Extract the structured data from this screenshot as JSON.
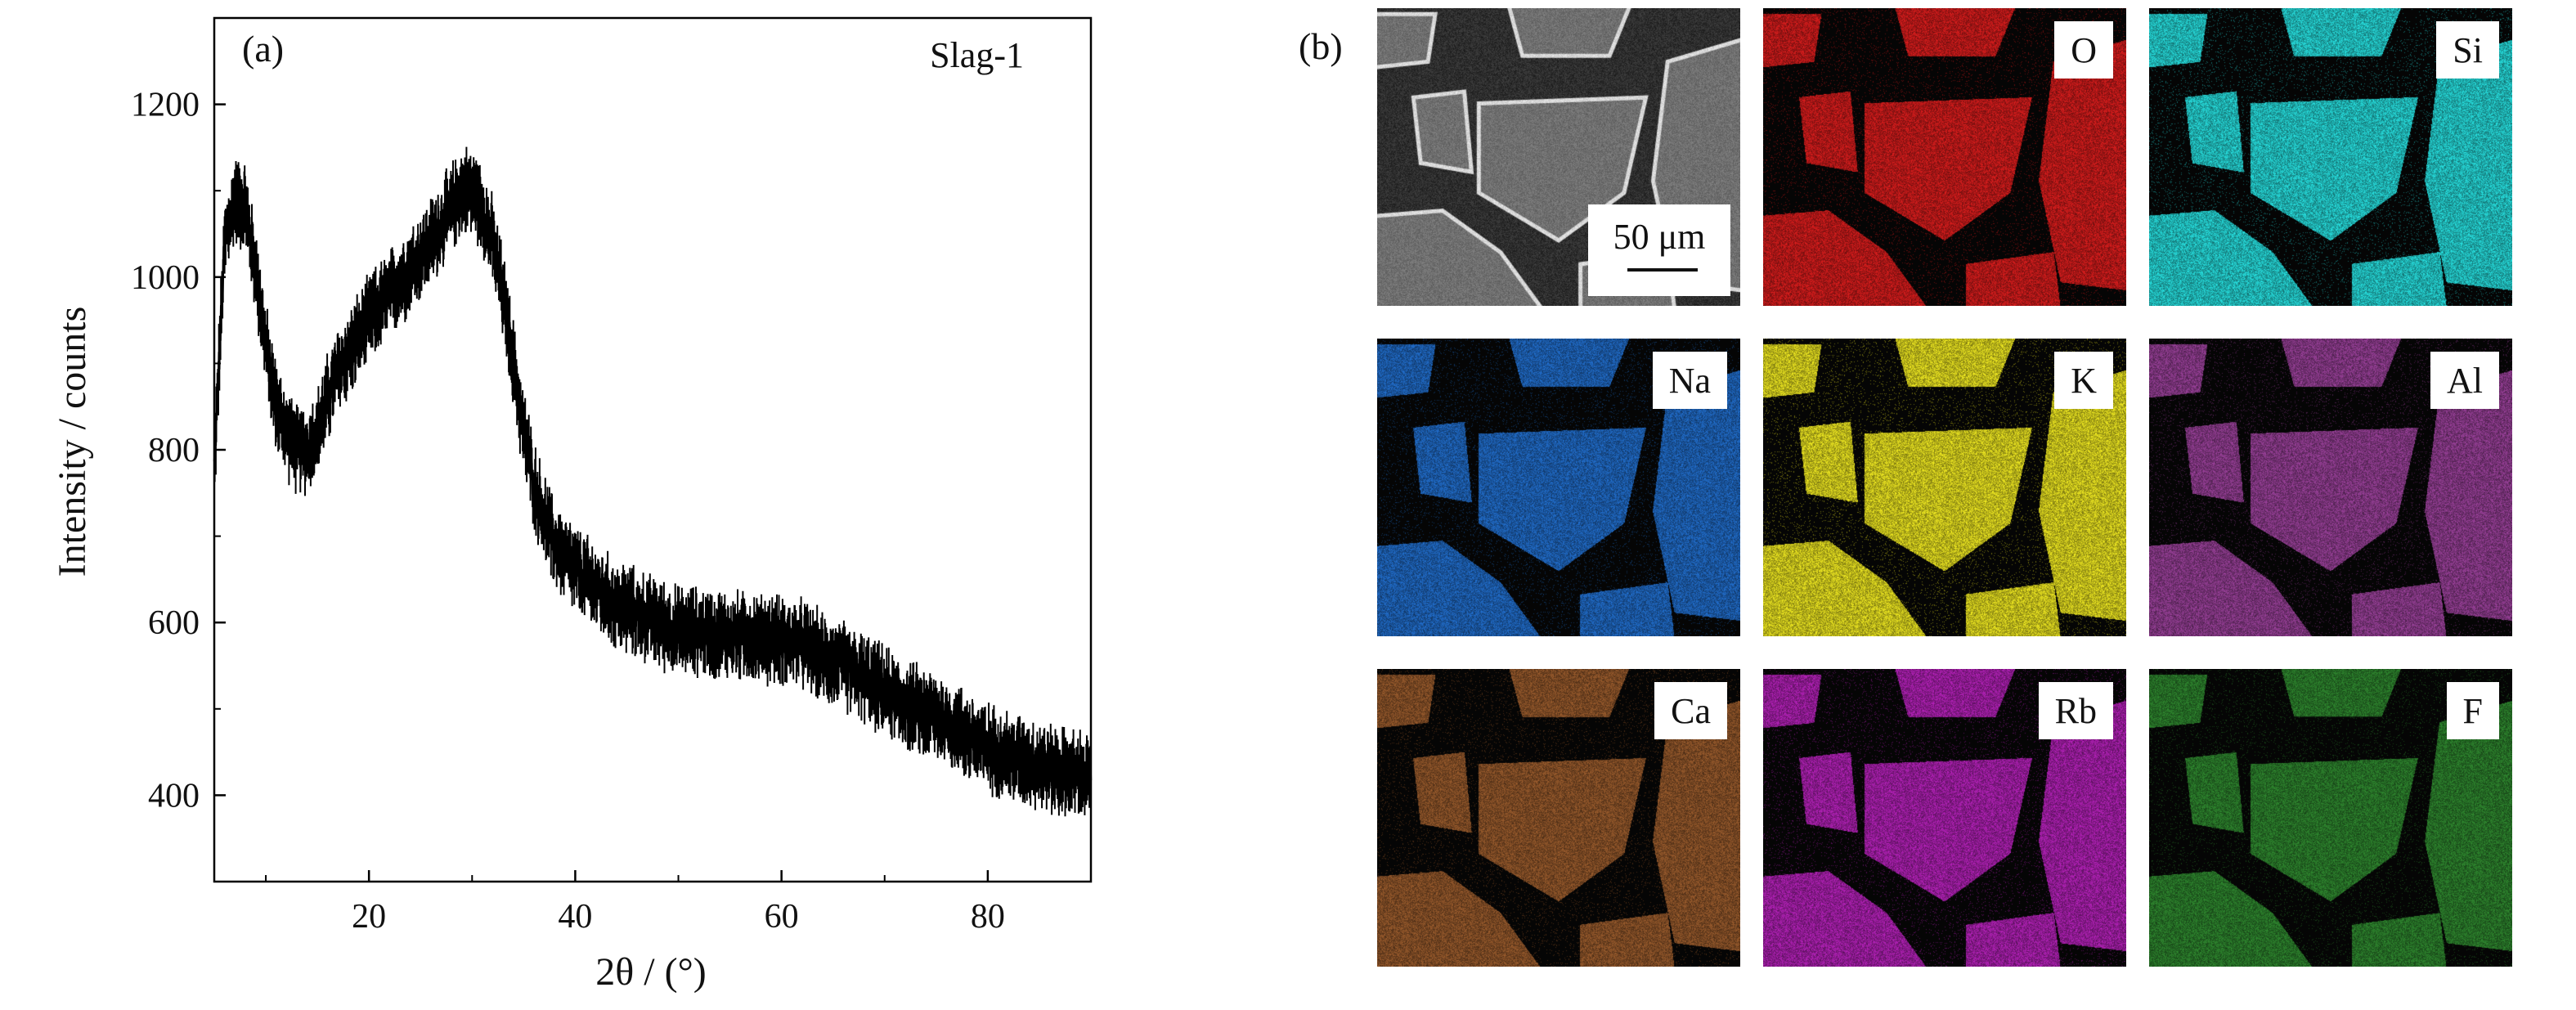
{
  "panel_a": {
    "letter": "(a)"
  },
  "panel_b": {
    "letter": "(b)",
    "scale_bar_label": "50 μm",
    "maps": [
      {
        "label": "",
        "kind": "sem",
        "color": "#8a8a8a"
      },
      {
        "label": "O",
        "kind": "eds",
        "color": "#c41a1a"
      },
      {
        "label": "Si",
        "kind": "eds",
        "color": "#23c9c9"
      },
      {
        "label": "Na",
        "kind": "eds",
        "color": "#1e63b8"
      },
      {
        "label": "K",
        "kind": "eds",
        "color": "#d8d21e"
      },
      {
        "label": "Al",
        "kind": "eds",
        "color": "#8a3a8a"
      },
      {
        "label": "Ca",
        "kind": "eds",
        "color": "#8a5228"
      },
      {
        "label": "Rb",
        "kind": "eds",
        "color": "#a21ea6"
      },
      {
        "label": "F",
        "kind": "eds",
        "color": "#2a7a2a"
      }
    ]
  },
  "chart_data": {
    "type": "line",
    "title": "",
    "annotation": "Slag-1",
    "xlabel": "2θ / (°)",
    "ylabel": "Intensity / counts",
    "xlim": [
      5,
      90
    ],
    "ylim": [
      300,
      1300
    ],
    "xticks": [
      20,
      40,
      60,
      80
    ],
    "yticks": [
      400,
      600,
      800,
      1000,
      1200
    ],
    "grid": false,
    "legend": "none",
    "series": [
      {
        "error_bars": true,
        "line_color": "#000000",
        "x": [
          5,
          6,
          7,
          8,
          9,
          10,
          11,
          12,
          13,
          14,
          15,
          16,
          17,
          18,
          19,
          20,
          22,
          24,
          26,
          28,
          29,
          30,
          31,
          32,
          33,
          34,
          35,
          36,
          37,
          38,
          40,
          42,
          44,
          46,
          48,
          50,
          52,
          54,
          56,
          58,
          60,
          62,
          64,
          66,
          68,
          70,
          72,
          74,
          76,
          78,
          80,
          82,
          84,
          86,
          88,
          90
        ],
        "y": [
          780,
          1040,
          1090,
          1080,
          1010,
          920,
          850,
          820,
          800,
          800,
          820,
          860,
          890,
          910,
          930,
          950,
          980,
          1010,
          1040,
          1080,
          1100,
          1100,
          1080,
          1040,
          980,
          900,
          820,
          760,
          720,
          690,
          660,
          640,
          620,
          610,
          600,
          590,
          590,
          585,
          585,
          580,
          580,
          575,
          560,
          550,
          535,
          520,
          505,
          495,
          485,
          470,
          455,
          445,
          440,
          430,
          425,
          420
        ]
      }
    ]
  }
}
